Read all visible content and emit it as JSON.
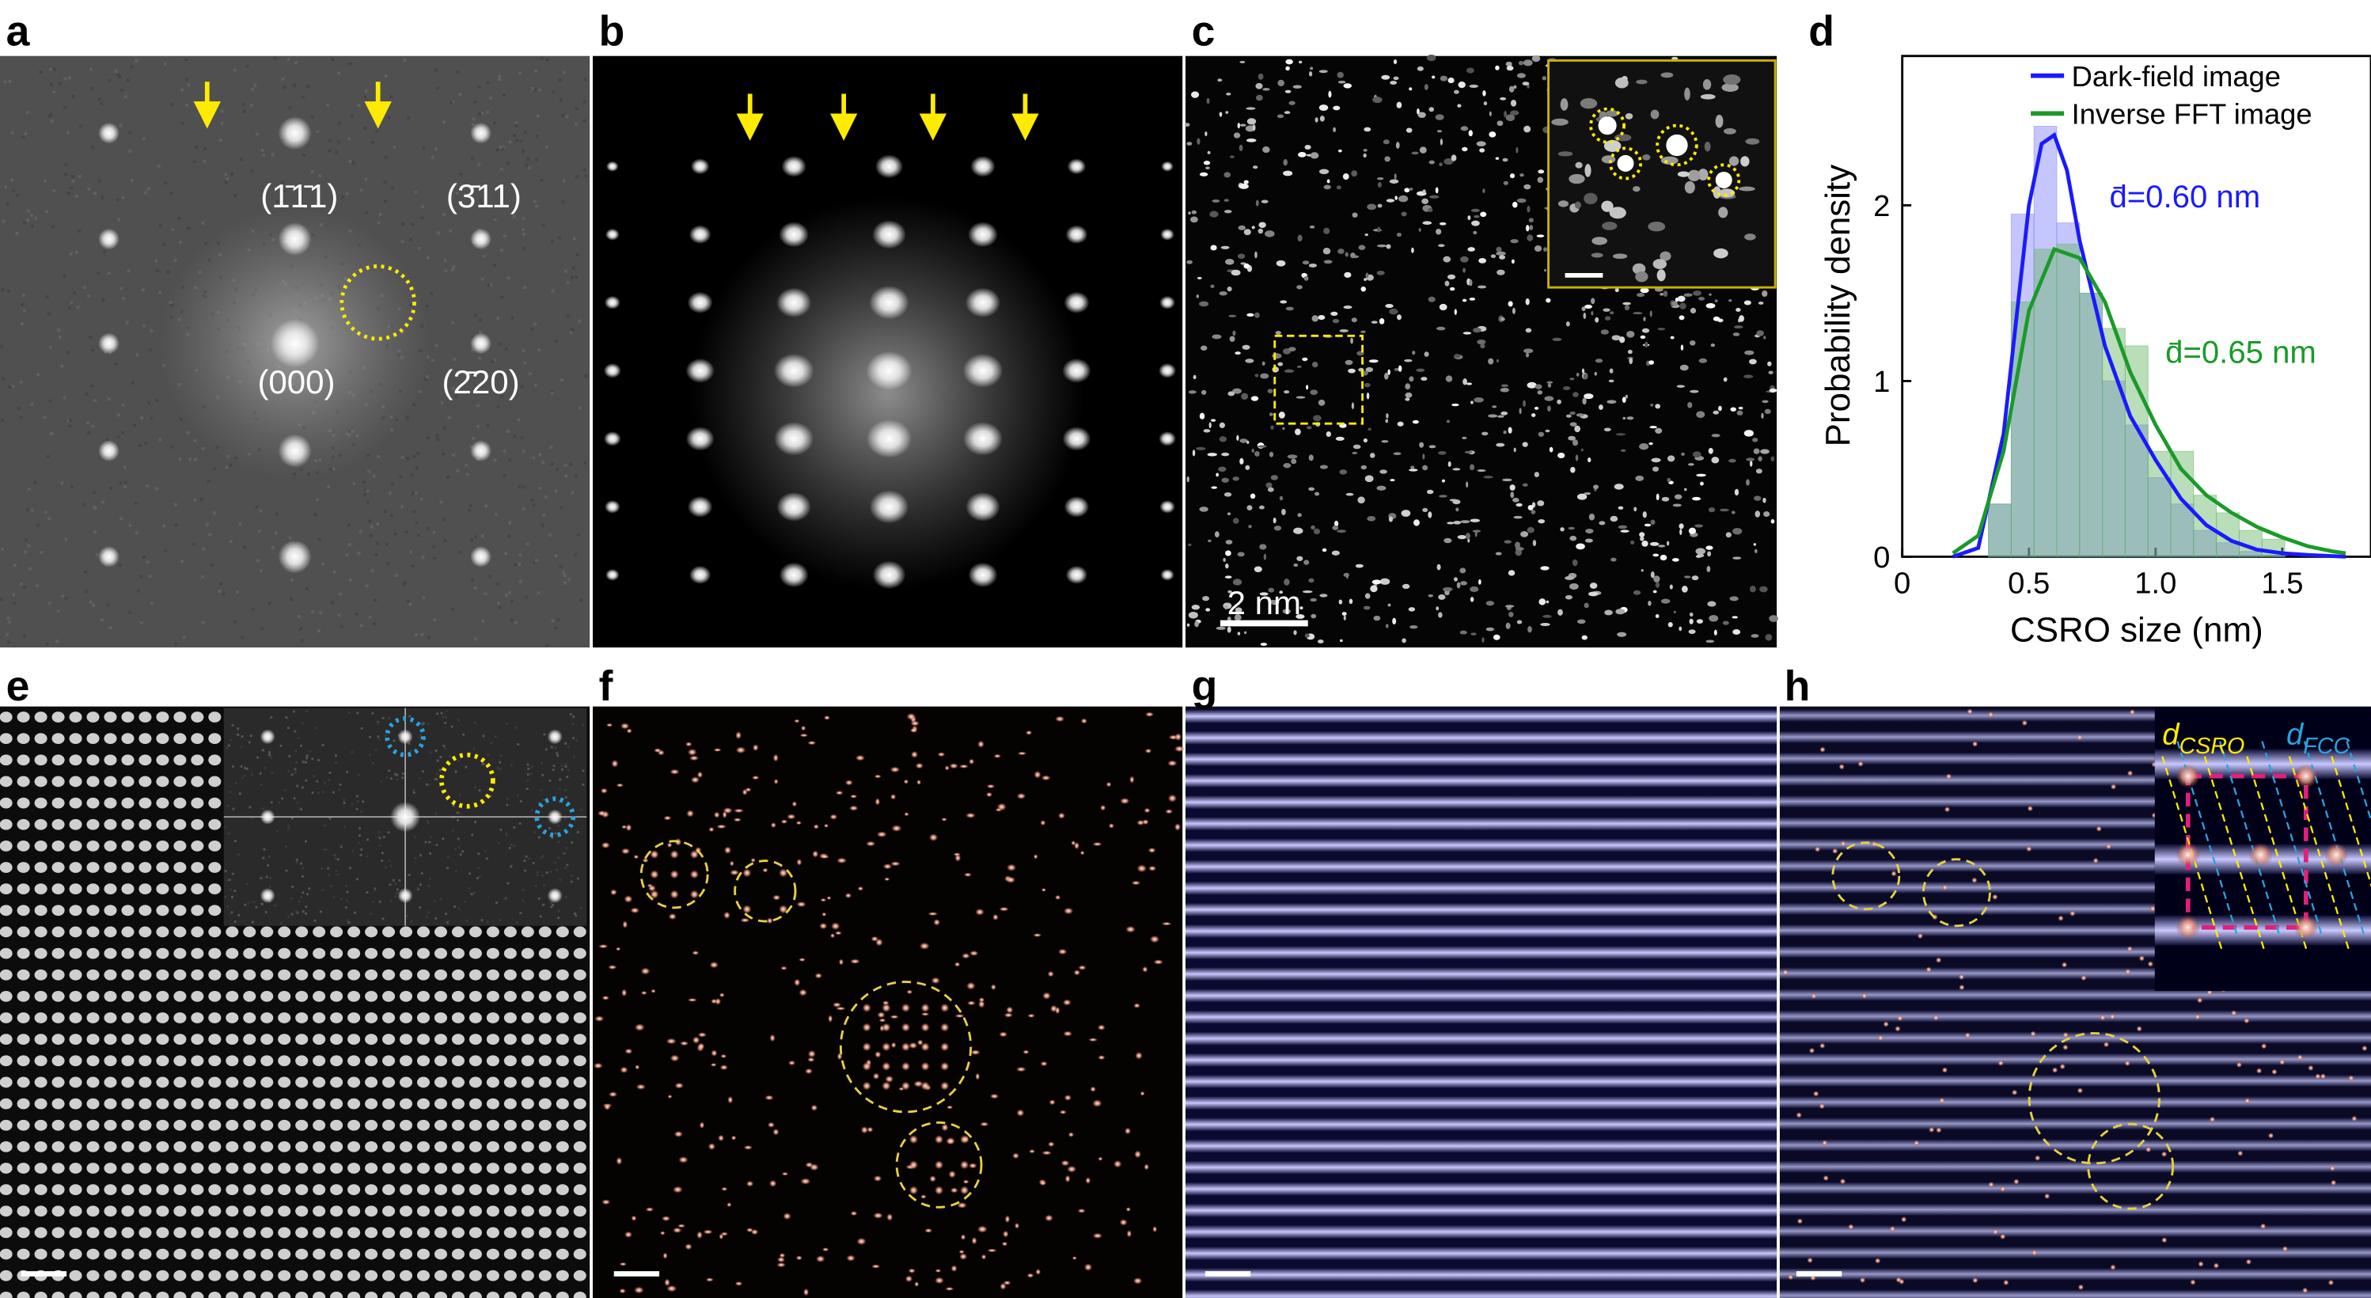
{
  "panels": [
    {
      "label": "a",
      "annotations": [
        "(1̄1̄1)",
        "(3̄11)",
        "(000)",
        "(2̄20)"
      ]
    },
    {
      "label": "b"
    },
    {
      "label": "c",
      "scale_bar": "2 nm"
    },
    {
      "label": "d"
    },
    {
      "label": "e"
    },
    {
      "label": "f"
    },
    {
      "label": "g"
    },
    {
      "label": "h",
      "inset_labels": [
        {
          "symbol": "d",
          "subscript": "CSRO"
        },
        {
          "symbol": "d",
          "subscript": "FCC"
        }
      ]
    }
  ],
  "chart_data": {
    "type": "histogram",
    "x_label": "CSRO size (nm)",
    "y_label": "Probability density",
    "bins": [
      0.34,
      0.43,
      0.52,
      0.61,
      0.7,
      0.79,
      0.88,
      0.97,
      1.06,
      1.15,
      1.24,
      1.33,
      1.42,
      1.51
    ],
    "series": [
      {
        "color": "#8080ff",
        "values": [
          0.3,
          1.95,
          2.45,
          1.9,
          1.5,
          1.0,
          0.75,
          0.45,
          0.3,
          0.15,
          0.08,
          0.03,
          0.01
        ]
      },
      {
        "color": "#66b366",
        "values": [
          0.3,
          1.45,
          1.75,
          1.78,
          1.5,
          1.3,
          1.2,
          0.6,
          0.6,
          0.35,
          0.25,
          0.15,
          0.1
        ]
      }
    ],
    "curves": [
      {
        "name": "Dark-field image",
        "color": "#1a1aff",
        "x": [
          0.2,
          0.3,
          0.4,
          0.5,
          0.55,
          0.6,
          0.65,
          0.7,
          0.8,
          0.9,
          1.0,
          1.1,
          1.2,
          1.3,
          1.4,
          1.5,
          1.6,
          1.75
        ],
        "values": [
          0,
          0.05,
          0.7,
          2.0,
          2.35,
          2.4,
          2.2,
          1.8,
          1.2,
          0.8,
          0.55,
          0.33,
          0.18,
          0.09,
          0.04,
          0.02,
          0.01,
          0
        ]
      },
      {
        "name": "Inverse FFT image",
        "color": "#1a9a2a",
        "x": [
          0.2,
          0.3,
          0.4,
          0.5,
          0.6,
          0.7,
          0.8,
          0.9,
          1.0,
          1.1,
          1.2,
          1.3,
          1.4,
          1.5,
          1.6,
          1.7,
          1.75
        ],
        "values": [
          0.02,
          0.12,
          0.6,
          1.4,
          1.75,
          1.7,
          1.45,
          1.05,
          0.75,
          0.5,
          0.35,
          0.25,
          0.17,
          0.11,
          0.06,
          0.03,
          0.02
        ]
      }
    ],
    "annotations": [
      "d̄=0.60 nm",
      "d̄=0.65 nm"
    ],
    "xlim": [
      0,
      1.85
    ],
    "ylim": [
      0,
      2.85
    ],
    "xticks": [
      0,
      0.5,
      {
        "value": 1,
        "label": "1.0"
      },
      1.5
    ],
    "yticks": [
      0,
      1,
      2
    ],
    "legend": "upper right"
  }
}
